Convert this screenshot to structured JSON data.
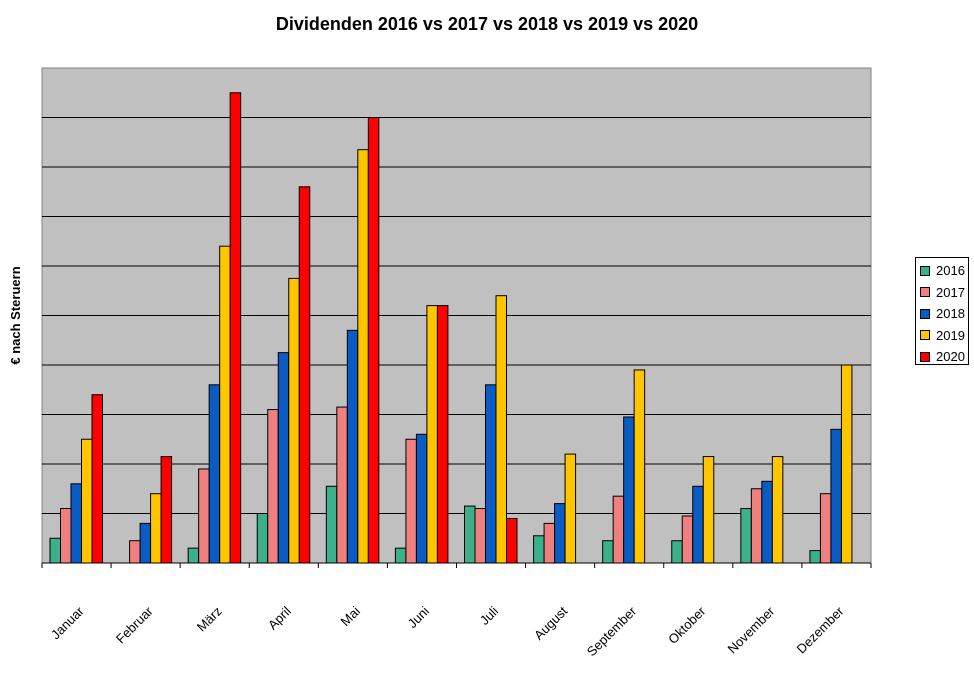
{
  "chart_data": {
    "type": "bar",
    "title": "Dividenden 2016 vs 2017 vs 2018 vs 2019 vs 2020",
    "xlabel": "",
    "ylabel": "€ nach Steruern",
    "ylim": [
      0,
      10
    ],
    "grid": true,
    "legend_position": "right",
    "categories": [
      "Januar",
      "Februar",
      "März",
      "April",
      "Mai",
      "Juni",
      "Juli",
      "August",
      "September",
      "Oktober",
      "November",
      "Dezember"
    ],
    "series": [
      {
        "name": "2016",
        "color": "#3cb08a",
        "values": [
          0.5,
          0,
          0.3,
          1.0,
          1.55,
          0.3,
          1.15,
          0.55,
          0.45,
          0.45,
          1.1,
          0.25
        ]
      },
      {
        "name": "2017",
        "color": "#f08080",
        "values": [
          1.1,
          0.45,
          1.9,
          3.1,
          3.15,
          2.5,
          1.1,
          0.8,
          1.35,
          0.95,
          1.5,
          1.4
        ]
      },
      {
        "name": "2018",
        "color": "#0a5bc4",
        "values": [
          1.6,
          0.8,
          3.6,
          4.25,
          4.7,
          2.6,
          3.6,
          1.2,
          2.95,
          1.55,
          1.65,
          2.7
        ]
      },
      {
        "name": "2019",
        "color": "#ffc600",
        "values": [
          2.5,
          1.4,
          6.4,
          5.75,
          8.35,
          5.2,
          5.4,
          2.2,
          3.9,
          2.15,
          2.15,
          4.0
        ]
      },
      {
        "name": "2020",
        "color": "#ff0000",
        "values": [
          3.4,
          2.15,
          9.5,
          7.6,
          9.0,
          5.2,
          0.9,
          null,
          null,
          null,
          null,
          null
        ]
      }
    ]
  }
}
